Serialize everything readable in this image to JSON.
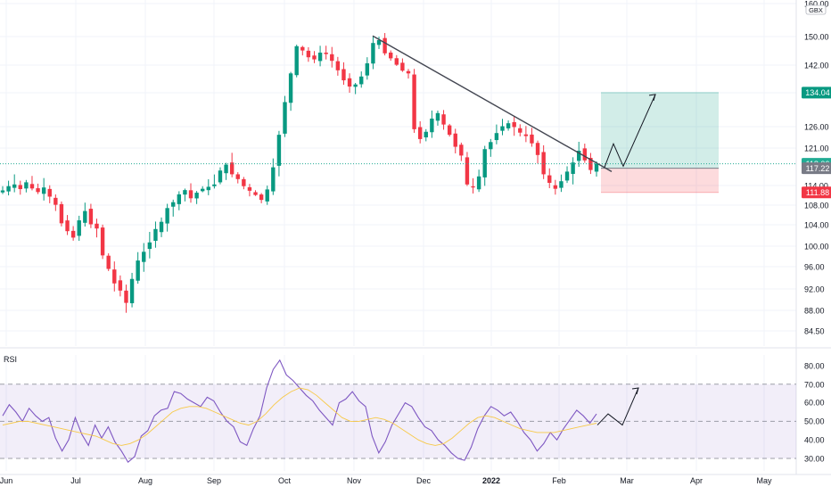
{
  "chart_data": [
    {
      "type": "candlestick",
      "currency": "GBX",
      "y_axis_ticks": [
        84.5,
        88.0,
        92.0,
        96.0,
        100.0,
        104.0,
        108.0,
        114.0,
        121.0,
        126.0,
        134.0,
        142.0,
        150.0,
        160.0
      ],
      "y_tick_labels": [
        "84.50",
        "88.00",
        "92.00",
        "96.00",
        "100.00",
        "104.00",
        "108.00",
        "114.00",
        "121.00",
        "126.00",
        "134.00",
        "142.00",
        "150.00",
        "160.00"
      ],
      "ylim": [
        82.5,
        163
      ],
      "x_tick_labels": [
        "Jun",
        "Jul",
        "Aug",
        "Sep",
        "Oct",
        "Nov",
        "Dec",
        "2022",
        "Feb",
        "Mar",
        "Apr",
        "May"
      ],
      "price_tags": [
        {
          "label": "134.04",
          "value": 134.04,
          "color": "#089981"
        },
        {
          "label": "118.06",
          "value": 118.06,
          "color": "#22ab94"
        },
        {
          "label": "117.22",
          "value": 117.22,
          "color": "#787b86"
        },
        {
          "label": "111.88",
          "value": 111.88,
          "color": "#f23645"
        }
      ],
      "last_price": 118.06,
      "trendline": {
        "from": {
          "date": "Nov 9",
          "price": 150.2
        },
        "to": {
          "date": "Feb 20",
          "price": 116.6
        }
      },
      "position": {
        "entry": 117.22,
        "target": 134.04,
        "stop": 111.88
      },
      "projection": [
        117.4,
        122.0,
        117.6,
        133.6
      ],
      "ohlc_close_path": [
        112.5,
        113.8,
        114.2,
        112.9,
        114.6,
        113.1,
        112.0,
        113.4,
        110.6,
        108.1,
        104.3,
        102.8,
        101.6,
        104.9,
        106.8,
        104.1,
        103.3,
        98.2,
        95.6,
        93.0,
        91.7,
        89.4,
        93.8,
        97.2,
        98.9,
        100.7,
        103.2,
        104.6,
        107.4,
        108.9,
        111.3,
        112.6,
        110.1,
        111.8,
        113.0,
        113.6,
        114.2,
        116.8,
        117.9,
        116.1,
        115.2,
        113.8,
        112.4,
        111.1,
        109.6,
        112.8,
        117.4,
        124.1,
        131.8,
        139.6,
        147.3,
        146.1,
        144.2,
        143.6,
        145.5,
        145.1,
        143.2,
        140.5,
        137.6,
        135.8,
        136.4,
        138.7,
        142.5,
        148.2,
        149.0,
        145.3,
        143.9,
        142.1,
        140.4,
        139.6,
        125.4,
        123.1,
        124.8,
        127.9,
        129.2,
        126.5,
        124.1,
        121.3,
        119.6,
        114.2,
        113.4,
        115.7,
        120.8,
        122.4,
        124.5,
        126.1,
        126.8,
        125.9,
        124.6,
        123.8,
        122.1,
        119.7,
        116.1,
        114.5,
        113.0,
        114.8,
        116.6,
        118.3,
        120.5,
        118.7,
        116.9,
        118.1
      ]
    },
    {
      "type": "line",
      "title": "RSI",
      "y_axis_ticks": [
        30,
        40,
        50,
        60,
        70,
        80
      ],
      "y_tick_labels": [
        "30.00",
        "40.00",
        "50.00",
        "60.00",
        "70.00",
        "80.00"
      ],
      "ylim": [
        25,
        86
      ],
      "band": {
        "upper": 70,
        "middle": 50,
        "lower": 30
      },
      "series": [
        {
          "color": "#7e57c2",
          "values": [
            53,
            59,
            55,
            50,
            57,
            53,
            50,
            52,
            41,
            34,
            40,
            52,
            43,
            37,
            48,
            41,
            47,
            39,
            34,
            28,
            31,
            42,
            45,
            53,
            56,
            57,
            66,
            65,
            62,
            60,
            58,
            63,
            61,
            55,
            50,
            47,
            39,
            37,
            46,
            53,
            68,
            78,
            83,
            75,
            72,
            68,
            64,
            61,
            56,
            52,
            48,
            60,
            62,
            66,
            61,
            58,
            42,
            33,
            39,
            48,
            54,
            60,
            58,
            52,
            47,
            45,
            40,
            37,
            33,
            30,
            29,
            36,
            46,
            53,
            58,
            56,
            53,
            55,
            50,
            44,
            40,
            34,
            38,
            44,
            40,
            46,
            51,
            56,
            53,
            49,
            54
          ]
        },
        {
          "color": "#f7c948",
          "values": [
            48,
            49,
            50,
            50,
            49,
            48,
            47,
            46,
            45,
            44,
            43,
            42,
            40,
            38,
            37,
            38,
            40,
            43,
            47,
            51,
            55,
            57,
            58,
            58,
            57,
            55,
            53,
            51,
            49,
            48,
            50,
            54,
            59,
            63,
            66,
            68,
            67,
            64,
            60,
            56,
            52,
            50,
            50,
            51,
            52,
            51,
            49,
            46,
            43,
            40,
            38,
            37,
            38,
            41,
            45,
            49,
            52,
            53,
            52,
            50,
            48,
            46,
            45,
            44,
            44,
            44,
            45,
            46,
            47,
            48,
            49
          ]
        }
      ],
      "projection": [
        48,
        54,
        48,
        68
      ]
    }
  ]
}
